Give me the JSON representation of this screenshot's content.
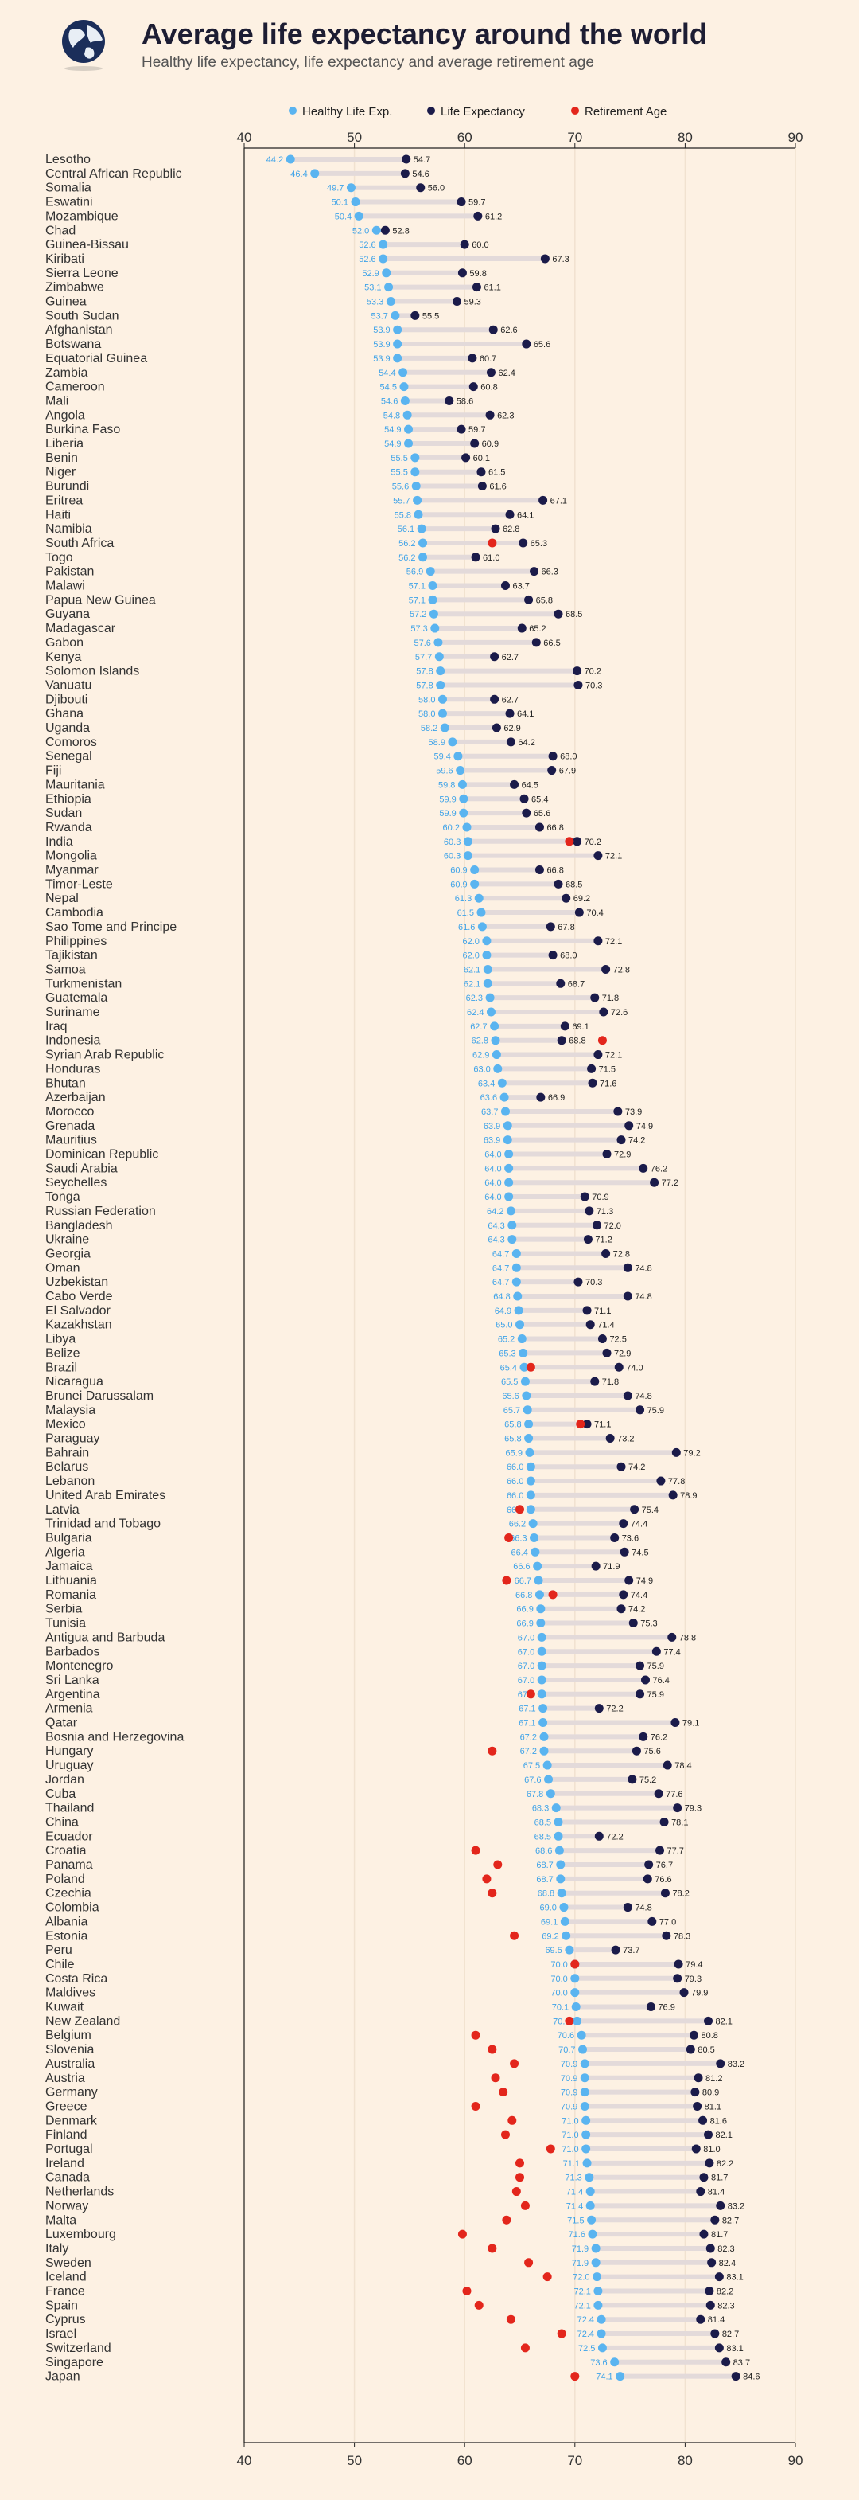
{
  "title": "Average life expectancy around the world",
  "subtitle": "Healthy life expectancy, life expectancy and average retirement age",
  "colors": {
    "healthy": "#5ab4f0",
    "life": "#1b1b4a",
    "retirement": "#e3261c",
    "bar": "#e3dada",
    "grid": "#f1e2d0",
    "background": "#fdf1e3"
  },
  "icons": {
    "logo": "globe-icon"
  },
  "chart_data": {
    "type": "dumbbell",
    "xlim": [
      40,
      90
    ],
    "xticks": [
      40,
      50,
      60,
      70,
      80,
      90
    ],
    "legend": [
      {
        "key": "healthy",
        "label": "Healthy Life Exp."
      },
      {
        "key": "life",
        "label": "Life Expectancy"
      },
      {
        "key": "retirement",
        "label": "Retirement Age"
      }
    ],
    "rows": [
      {
        "c": "Lesotho",
        "h": 44.2,
        "l": 54.7,
        "r": null
      },
      {
        "c": "Central African Republic",
        "h": 46.4,
        "l": 54.6,
        "r": null
      },
      {
        "c": "Somalia",
        "h": 49.7,
        "l": 56.0,
        "r": null
      },
      {
        "c": "Eswatini",
        "h": 50.1,
        "l": 59.7,
        "r": null
      },
      {
        "c": "Mozambique",
        "h": 50.4,
        "l": 61.2,
        "r": null
      },
      {
        "c": "Chad",
        "h": 52.0,
        "l": 52.8,
        "r": null
      },
      {
        "c": "Guinea-Bissau",
        "h": 52.6,
        "l": 60.0,
        "r": null
      },
      {
        "c": "Kiribati",
        "h": 52.6,
        "l": 67.3,
        "r": null
      },
      {
        "c": "Sierra Leone",
        "h": 52.9,
        "l": 59.8,
        "r": null
      },
      {
        "c": "Zimbabwe",
        "h": 53.1,
        "l": 61.1,
        "r": null
      },
      {
        "c": "Guinea",
        "h": 53.3,
        "l": 59.3,
        "r": null
      },
      {
        "c": "South Sudan",
        "h": 53.7,
        "l": 55.5,
        "r": null
      },
      {
        "c": "Afghanistan",
        "h": 53.9,
        "l": 62.6,
        "r": null
      },
      {
        "c": "Botswana",
        "h": 53.9,
        "l": 65.6,
        "r": null
      },
      {
        "c": "Equatorial Guinea",
        "h": 53.9,
        "l": 60.7,
        "r": null
      },
      {
        "c": "Zambia",
        "h": 54.4,
        "l": 62.4,
        "r": null
      },
      {
        "c": "Cameroon",
        "h": 54.5,
        "l": 60.8,
        "r": null
      },
      {
        "c": "Mali",
        "h": 54.6,
        "l": 58.6,
        "r": null
      },
      {
        "c": "Angola",
        "h": 54.8,
        "l": 62.3,
        "r": null
      },
      {
        "c": "Burkina Faso",
        "h": 54.9,
        "l": 59.7,
        "r": null
      },
      {
        "c": "Liberia",
        "h": 54.9,
        "l": 60.9,
        "r": null
      },
      {
        "c": "Benin",
        "h": 55.5,
        "l": 60.1,
        "r": null
      },
      {
        "c": "Niger",
        "h": 55.5,
        "l": 61.5,
        "r": null
      },
      {
        "c": "Burundi",
        "h": 55.6,
        "l": 61.6,
        "r": null
      },
      {
        "c": "Eritrea",
        "h": 55.7,
        "l": 67.1,
        "r": null
      },
      {
        "c": "Haiti",
        "h": 55.8,
        "l": 64.1,
        "r": null
      },
      {
        "c": "Namibia",
        "h": 56.1,
        "l": 62.8,
        "r": null
      },
      {
        "c": "South Africa",
        "h": 56.2,
        "l": 65.3,
        "r": 62.5
      },
      {
        "c": "Togo",
        "h": 56.2,
        "l": 61.0,
        "r": null
      },
      {
        "c": "Pakistan",
        "h": 56.9,
        "l": 66.3,
        "r": null
      },
      {
        "c": "Malawi",
        "h": 57.1,
        "l": 63.7,
        "r": null
      },
      {
        "c": "Papua New Guinea",
        "h": 57.1,
        "l": 65.8,
        "r": null
      },
      {
        "c": "Guyana",
        "h": 57.2,
        "l": 68.5,
        "r": null
      },
      {
        "c": "Madagascar",
        "h": 57.3,
        "l": 65.2,
        "r": null
      },
      {
        "c": "Gabon",
        "h": 57.6,
        "l": 66.5,
        "r": null
      },
      {
        "c": "Kenya",
        "h": 57.7,
        "l": 62.7,
        "r": null
      },
      {
        "c": "Solomon Islands",
        "h": 57.8,
        "l": 70.2,
        "r": null
      },
      {
        "c": "Vanuatu",
        "h": 57.8,
        "l": 70.3,
        "r": null
      },
      {
        "c": "Djibouti",
        "h": 58.0,
        "l": 62.7,
        "r": null
      },
      {
        "c": "Ghana",
        "h": 58.0,
        "l": 64.1,
        "r": null
      },
      {
        "c": "Uganda",
        "h": 58.2,
        "l": 62.9,
        "r": null
      },
      {
        "c": "Comoros",
        "h": 58.9,
        "l": 64.2,
        "r": null
      },
      {
        "c": "Senegal",
        "h": 59.4,
        "l": 68.0,
        "r": null
      },
      {
        "c": "Fiji",
        "h": 59.6,
        "l": 67.9,
        "r": null
      },
      {
        "c": "Mauritania",
        "h": 59.8,
        "l": 64.5,
        "r": null
      },
      {
        "c": "Ethiopia",
        "h": 59.9,
        "l": 65.4,
        "r": null
      },
      {
        "c": "Sudan",
        "h": 59.9,
        "l": 65.6,
        "r": null
      },
      {
        "c": "Rwanda",
        "h": 60.2,
        "l": 66.8,
        "r": null
      },
      {
        "c": "India",
        "h": 60.3,
        "l": 70.2,
        "r": 69.5
      },
      {
        "c": "Mongolia",
        "h": 60.3,
        "l": 72.1,
        "r": null
      },
      {
        "c": "Myanmar",
        "h": 60.9,
        "l": 66.8,
        "r": null
      },
      {
        "c": "Timor-Leste",
        "h": 60.9,
        "l": 68.5,
        "r": null
      },
      {
        "c": "Nepal",
        "h": 61.3,
        "l": 69.2,
        "r": null
      },
      {
        "c": "Cambodia",
        "h": 61.5,
        "l": 70.4,
        "r": null
      },
      {
        "c": "Sao Tome and Principe",
        "h": 61.6,
        "l": 67.8,
        "r": null
      },
      {
        "c": "Philippines",
        "h": 62.0,
        "l": 72.1,
        "r": null
      },
      {
        "c": "Tajikistan",
        "h": 62.0,
        "l": 68.0,
        "r": null
      },
      {
        "c": "Samoa",
        "h": 62.1,
        "l": 72.8,
        "r": null
      },
      {
        "c": "Turkmenistan",
        "h": 62.1,
        "l": 68.7,
        "r": null
      },
      {
        "c": "Guatemala",
        "h": 62.3,
        "l": 71.8,
        "r": null
      },
      {
        "c": "Suriname",
        "h": 62.4,
        "l": 72.6,
        "r": null
      },
      {
        "c": "Iraq",
        "h": 62.7,
        "l": 69.1,
        "r": null
      },
      {
        "c": "Indonesia",
        "h": 62.8,
        "l": 68.8,
        "r": 72.5
      },
      {
        "c": "Syrian Arab Republic",
        "h": 62.9,
        "l": 72.1,
        "r": null
      },
      {
        "c": "Honduras",
        "h": 63.0,
        "l": 71.5,
        "r": null
      },
      {
        "c": "Bhutan",
        "h": 63.4,
        "l": 71.6,
        "r": null
      },
      {
        "c": "Azerbaijan",
        "h": 63.6,
        "l": 66.9,
        "r": null
      },
      {
        "c": "Morocco",
        "h": 63.7,
        "l": 73.9,
        "r": null
      },
      {
        "c": "Grenada",
        "h": 63.9,
        "l": 74.9,
        "r": null
      },
      {
        "c": "Mauritius",
        "h": 63.9,
        "l": 74.2,
        "r": null
      },
      {
        "c": "Dominican Republic",
        "h": 64.0,
        "l": 72.9,
        "r": null
      },
      {
        "c": "Saudi Arabia",
        "h": 64.0,
        "l": 76.2,
        "r": null
      },
      {
        "c": "Seychelles",
        "h": 64.0,
        "l": 77.2,
        "r": null
      },
      {
        "c": "Tonga",
        "h": 64.0,
        "l": 70.9,
        "r": null
      },
      {
        "c": "Russian Federation",
        "h": 64.2,
        "l": 71.3,
        "r": null
      },
      {
        "c": "Bangladesh",
        "h": 64.3,
        "l": 72.0,
        "r": null
      },
      {
        "c": "Ukraine",
        "h": 64.3,
        "l": 71.2,
        "r": null
      },
      {
        "c": "Georgia",
        "h": 64.7,
        "l": 72.8,
        "r": null
      },
      {
        "c": "Oman",
        "h": 64.7,
        "l": 74.8,
        "r": null
      },
      {
        "c": "Uzbekistan",
        "h": 64.7,
        "l": 70.3,
        "r": null
      },
      {
        "c": "Cabo Verde",
        "h": 64.8,
        "l": 74.8,
        "r": null
      },
      {
        "c": "El Salvador",
        "h": 64.9,
        "l": 71.1,
        "r": null
      },
      {
        "c": "Kazakhstan",
        "h": 65.0,
        "l": 71.4,
        "r": null
      },
      {
        "c": "Libya",
        "h": 65.2,
        "l": 72.5,
        "r": null
      },
      {
        "c": "Belize",
        "h": 65.3,
        "l": 72.9,
        "r": null
      },
      {
        "c": "Brazil",
        "h": 65.4,
        "l": 74.0,
        "r": 66.0
      },
      {
        "c": "Nicaragua",
        "h": 65.5,
        "l": 71.8,
        "r": null
      },
      {
        "c": "Brunei Darussalam",
        "h": 65.6,
        "l": 74.8,
        "r": null
      },
      {
        "c": "Malaysia",
        "h": 65.7,
        "l": 75.9,
        "r": null
      },
      {
        "c": "Mexico",
        "h": 65.8,
        "l": 71.1,
        "r": 70.5
      },
      {
        "c": "Paraguay",
        "h": 65.8,
        "l": 73.2,
        "r": null
      },
      {
        "c": "Bahrain",
        "h": 65.9,
        "l": 79.2,
        "r": null
      },
      {
        "c": "Belarus",
        "h": 66.0,
        "l": 74.2,
        "r": null
      },
      {
        "c": "Lebanon",
        "h": 66.0,
        "l": 77.8,
        "r": null
      },
      {
        "c": "United Arab Emirates",
        "h": 66.0,
        "l": 78.9,
        "r": null
      },
      {
        "c": "Latvia",
        "h": 66.0,
        "l": 75.4,
        "r": 65.0
      },
      {
        "c": "Trinidad and Tobago",
        "h": 66.2,
        "l": 74.4,
        "r": null
      },
      {
        "c": "Bulgaria",
        "h": 66.3,
        "l": 73.6,
        "r": 64.0
      },
      {
        "c": "Algeria",
        "h": 66.4,
        "l": 74.5,
        "r": null
      },
      {
        "c": "Jamaica",
        "h": 66.6,
        "l": 71.9,
        "r": null
      },
      {
        "c": "Lithuania",
        "h": 66.7,
        "l": 74.9,
        "r": 63.8
      },
      {
        "c": "Romania",
        "h": 66.8,
        "l": 74.4,
        "r": 68.0
      },
      {
        "c": "Serbia",
        "h": 66.9,
        "l": 74.2,
        "r": null
      },
      {
        "c": "Tunisia",
        "h": 66.9,
        "l": 75.3,
        "r": null
      },
      {
        "c": "Antigua and Barbuda",
        "h": 67.0,
        "l": 78.8,
        "r": null
      },
      {
        "c": "Barbados",
        "h": 67.0,
        "l": 77.4,
        "r": null
      },
      {
        "c": "Montenegro",
        "h": 67.0,
        "l": 75.9,
        "r": null
      },
      {
        "c": "Sri Lanka",
        "h": 67.0,
        "l": 76.4,
        "r": null
      },
      {
        "c": "Argentina",
        "h": 67.0,
        "l": 75.9,
        "r": 66.0
      },
      {
        "c": "Armenia",
        "h": 67.1,
        "l": 72.2,
        "r": null
      },
      {
        "c": "Qatar",
        "h": 67.1,
        "l": 79.1,
        "r": null
      },
      {
        "c": "Bosnia and Herzegovina",
        "h": 67.2,
        "l": 76.2,
        "r": null
      },
      {
        "c": "Hungary",
        "h": 67.2,
        "l": 75.6,
        "r": 62.5
      },
      {
        "c": "Uruguay",
        "h": 67.5,
        "l": 78.4,
        "r": null
      },
      {
        "c": "Jordan",
        "h": 67.6,
        "l": 75.2,
        "r": null
      },
      {
        "c": "Cuba",
        "h": 67.8,
        "l": 77.6,
        "r": null
      },
      {
        "c": "Thailand",
        "h": 68.3,
        "l": 79.3,
        "r": null
      },
      {
        "c": "China",
        "h": 68.5,
        "l": 78.1,
        "r": null
      },
      {
        "c": "Ecuador",
        "h": 68.5,
        "l": 72.2,
        "r": null
      },
      {
        "c": "Croatia",
        "h": 68.6,
        "l": 77.7,
        "r": 61.0
      },
      {
        "c": "Panama",
        "h": 68.7,
        "l": 76.7,
        "r": 63.0
      },
      {
        "c": "Poland",
        "h": 68.7,
        "l": 76.6,
        "r": 62.0
      },
      {
        "c": "Czechia",
        "h": 68.8,
        "l": 78.2,
        "r": 62.5
      },
      {
        "c": "Colombia",
        "h": 69.0,
        "l": 74.8,
        "r": null
      },
      {
        "c": "Albania",
        "h": 69.1,
        "l": 77.0,
        "r": null
      },
      {
        "c": "Estonia",
        "h": 69.2,
        "l": 78.3,
        "r": 64.5
      },
      {
        "c": "Peru",
        "h": 69.5,
        "l": 73.7,
        "r": null
      },
      {
        "c": "Chile",
        "h": 70.0,
        "l": 79.4,
        "r": 70.0
      },
      {
        "c": "Costa Rica",
        "h": 70.0,
        "l": 79.3,
        "r": null
      },
      {
        "c": "Maldives",
        "h": 70.0,
        "l": 79.9,
        "r": null
      },
      {
        "c": "Kuwait",
        "h": 70.1,
        "l": 76.9,
        "r": null
      },
      {
        "c": "New Zealand",
        "h": 70.2,
        "l": 82.1,
        "r": 69.5
      },
      {
        "c": "Belgium",
        "h": 70.6,
        "l": 80.8,
        "r": 61.0
      },
      {
        "c": "Slovenia",
        "h": 70.7,
        "l": 80.5,
        "r": 62.5
      },
      {
        "c": "Australia",
        "h": 70.9,
        "l": 83.2,
        "r": 64.5
      },
      {
        "c": "Austria",
        "h": 70.9,
        "l": 81.2,
        "r": 62.8
      },
      {
        "c": "Germany",
        "h": 70.9,
        "l": 80.9,
        "r": 63.5
      },
      {
        "c": "Greece",
        "h": 70.9,
        "l": 81.1,
        "r": 61.0
      },
      {
        "c": "Denmark",
        "h": 71.0,
        "l": 81.6,
        "r": 64.3
      },
      {
        "c": "Finland",
        "h": 71.0,
        "l": 82.1,
        "r": 63.7
      },
      {
        "c": "Portugal",
        "h": 71.0,
        "l": 81.0,
        "r": 67.8
      },
      {
        "c": "Ireland",
        "h": 71.1,
        "l": 82.2,
        "r": 65.0
      },
      {
        "c": "Canada",
        "h": 71.3,
        "l": 81.7,
        "r": 65.0
      },
      {
        "c": "Netherlands",
        "h": 71.4,
        "l": 81.4,
        "r": 64.7
      },
      {
        "c": "Norway",
        "h": 71.4,
        "l": 83.2,
        "r": 65.5
      },
      {
        "c": "Malta",
        "h": 71.5,
        "l": 82.7,
        "r": 63.8
      },
      {
        "c": "Luxembourg",
        "h": 71.6,
        "l": 81.7,
        "r": 59.8
      },
      {
        "c": "Italy",
        "h": 71.9,
        "l": 82.3,
        "r": 62.5
      },
      {
        "c": "Sweden",
        "h": 71.9,
        "l": 82.4,
        "r": 65.8
      },
      {
        "c": "Iceland",
        "h": 72.0,
        "l": 83.1,
        "r": 67.5
      },
      {
        "c": "France",
        "h": 72.1,
        "l": 82.2,
        "r": 60.2
      },
      {
        "c": "Spain",
        "h": 72.1,
        "l": 82.3,
        "r": 61.3
      },
      {
        "c": "Cyprus",
        "h": 72.4,
        "l": 81.4,
        "r": 64.2
      },
      {
        "c": "Israel",
        "h": 72.4,
        "l": 82.7,
        "r": 68.8
      },
      {
        "c": "Switzerland",
        "h": 72.5,
        "l": 83.1,
        "r": 65.5
      },
      {
        "c": "Singapore",
        "h": 73.6,
        "l": 83.7,
        "r": null
      },
      {
        "c": "Japan",
        "h": 74.1,
        "l": 84.6,
        "r": 70.0
      }
    ]
  }
}
